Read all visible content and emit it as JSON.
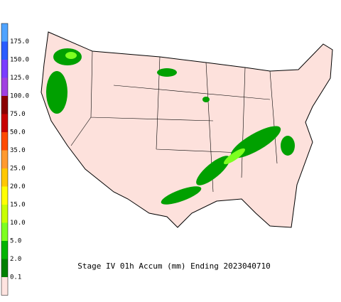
{
  "title": "Stage IV 01h Accum (mm) Ending 2023040710",
  "legend": {
    "labels": [
      "175.0",
      "150.0",
      "125.0",
      "100.0",
      "75.0",
      "50.0",
      "35.0",
      "25.0",
      "20.0",
      "15.0",
      "10.0",
      "5.0",
      "2.0",
      "0.1"
    ],
    "colors": [
      "#4fa3ff",
      "#2a5cff",
      "#7a3cff",
      "#a040e0",
      "#8a0000",
      "#c80000",
      "#ff4a00",
      "#ff9a30",
      "#ffc800",
      "#ffff00",
      "#c8ff00",
      "#7dff20",
      "#00b400",
      "#008000",
      "#ffe4e0"
    ]
  }
}
